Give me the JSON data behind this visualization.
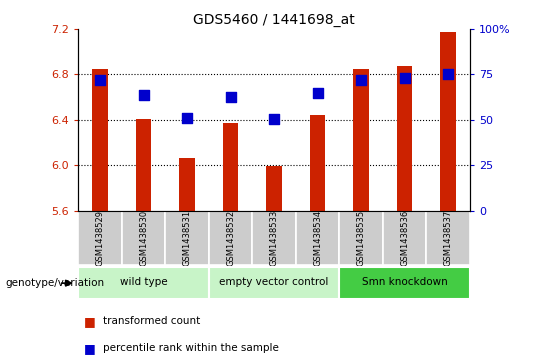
{
  "title": "GDS5460 / 1441698_at",
  "samples": [
    "GSM1438529",
    "GSM1438530",
    "GSM1438531",
    "GSM1438532",
    "GSM1438533",
    "GSM1438534",
    "GSM1438535",
    "GSM1438536",
    "GSM1438537"
  ],
  "red_values": [
    6.85,
    6.41,
    6.06,
    6.37,
    5.99,
    6.44,
    6.85,
    6.87,
    7.17
  ],
  "blue_values": [
    6.75,
    6.62,
    6.42,
    6.6,
    6.41,
    6.64,
    6.75,
    6.77,
    6.8
  ],
  "ylim_left": [
    5.6,
    7.2
  ],
  "ylim_right": [
    0,
    100
  ],
  "yticks_left": [
    5.6,
    6.0,
    6.4,
    6.8,
    7.2
  ],
  "yticks_right": [
    0,
    25,
    50,
    75,
    100
  ],
  "ytick_right_labels": [
    "0",
    "25",
    "50",
    "75",
    "100%"
  ],
  "groups": [
    {
      "label": "wild type",
      "start": 0,
      "end": 3,
      "color": "#c8f4c8"
    },
    {
      "label": "empty vector control",
      "start": 3,
      "end": 6,
      "color": "#c8f4c8"
    },
    {
      "label": "Smn knockdown",
      "start": 6,
      "end": 9,
      "color": "#44cc44"
    }
  ],
  "genotype_label": "genotype/variation",
  "legend_red": "transformed count",
  "legend_blue": "percentile rank within the sample",
  "bar_color": "#cc2200",
  "dot_color": "#0000cc",
  "bar_bottom": 5.6,
  "bar_width": 0.35,
  "dot_size": 45,
  "grid_dotted_at": [
    6.0,
    6.4,
    6.8
  ],
  "sample_bg_color": "#cccccc",
  "sample_bg_edge": "#aaaaaa"
}
